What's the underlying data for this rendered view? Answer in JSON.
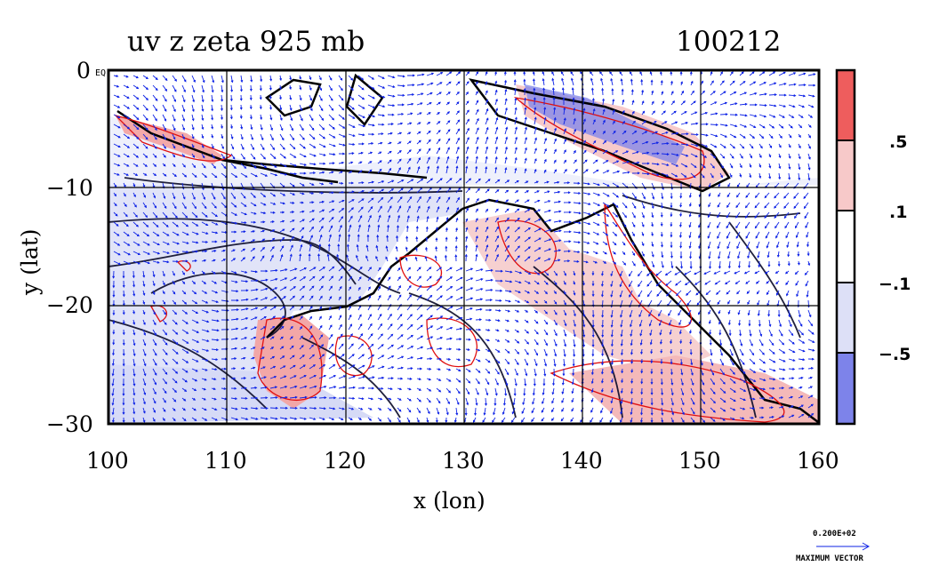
{
  "title_left": "uv z zeta 925 mb",
  "title_right": "100212",
  "x_axis": {
    "label": "x (lon)",
    "range": [
      100,
      160
    ],
    "ticks": [
      "100",
      "110",
      "120",
      "130",
      "140",
      "150",
      "160"
    ]
  },
  "y_axis": {
    "label": "y (lat)",
    "range": [
      -30,
      0
    ],
    "ticks": [
      "0",
      "−10",
      "−20",
      "−30"
    ]
  },
  "corner_note": "EQ",
  "colorbar": {
    "labels": [
      ".5",
      ".1",
      "−.1",
      "−.5"
    ]
  },
  "vector_key": {
    "value": "0.200E+02",
    "label": "MAXIMUM VECTOR"
  },
  "colors": {
    "positive_strong": "#ee5d5d",
    "positive_weak": "#f7c9c9",
    "negative_weak": "#dde0f7",
    "negative_strong": "#7d83ea",
    "vectors": "#0d22e6",
    "contour_pos": "#e01010",
    "contour_height": "#000000"
  }
}
